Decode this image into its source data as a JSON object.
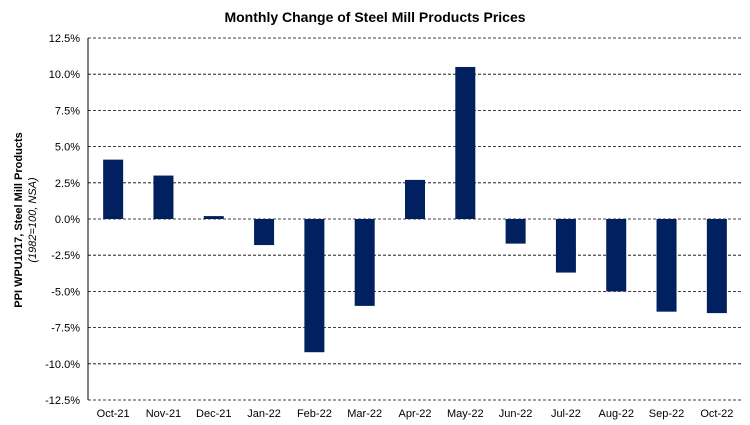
{
  "chart_data": {
    "type": "bar",
    "title": "Monthly Change of Steel Mill Products Prices",
    "ylabel": "PPI WPU1017, Steel Mill Products",
    "ylabel_sub": "(1982=100, NSA)",
    "xlabel": "",
    "categories": [
      "Oct-21",
      "Nov-21",
      "Dec-21",
      "Jan-22",
      "Feb-22",
      "Mar-22",
      "Apr-22",
      "May-22",
      "Jun-22",
      "Jul-22",
      "Aug-22",
      "Sep-22",
      "Oct-22"
    ],
    "values": [
      4.1,
      3.0,
      0.2,
      -1.8,
      -9.2,
      -6.0,
      2.7,
      10.5,
      -1.7,
      -3.7,
      -5.0,
      -6.4,
      -6.5
    ],
    "ylim": [
      -12.5,
      12.5
    ],
    "yticks": [
      "12.5%",
      "10.0%",
      "7.5%",
      "5.0%",
      "2.5%",
      "0.0%",
      "-2.5%",
      "-5.0%",
      "-7.5%",
      "-10.0%",
      "-12.5%"
    ],
    "ytick_values": [
      12.5,
      10,
      7.5,
      5,
      2.5,
      0,
      -2.5,
      -5,
      -7.5,
      -10,
      -12.5
    ],
    "grid": true,
    "bar_color": "#002060"
  }
}
